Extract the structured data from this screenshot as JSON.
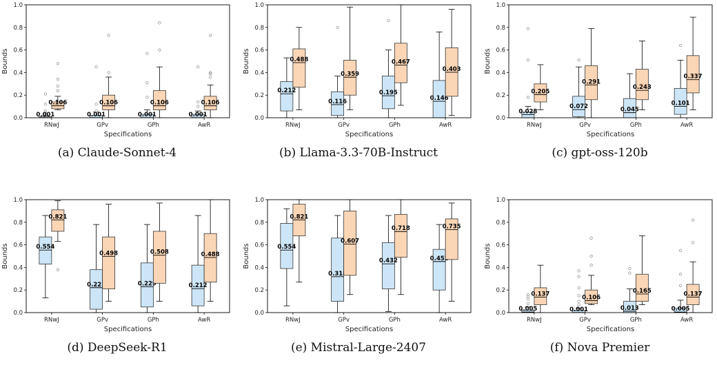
{
  "colors": {
    "lower": "#cde6f7",
    "upper": "#fbd6b6",
    "edge": "#333333",
    "outlier": "#999999"
  },
  "chart_data": [
    {
      "type": "boxplot",
      "caption": "(a) Claude-Sonnet-4",
      "xlabel": "Specifications",
      "ylabel": "Bounds",
      "ylim": [
        0,
        1.0
      ],
      "yticks": [
        "0.0",
        "0.2",
        "0.4",
        "0.6",
        "0.8",
        "1.0"
      ],
      "categories": [
        "RNwJ",
        "GPv",
        "GPh",
        "AwR"
      ],
      "groups": [
        {
          "lower": {
            "whislo": 0.0,
            "q1": 0.0,
            "med": 0.001,
            "q3": 0.01,
            "whishi": 0.02,
            "label": "0.001",
            "fliers": [
              0.04,
              0.06,
              0.12,
              0.21
            ]
          },
          "upper": {
            "whislo": 0.07,
            "q1": 0.08,
            "med": 0.106,
            "q3": 0.14,
            "whishi": 0.19,
            "label": "0.106",
            "fliers": [
              0.24,
              0.28,
              0.34,
              0.48
            ]
          }
        },
        {
          "lower": {
            "whislo": 0.0,
            "q1": 0.0,
            "med": 0.001,
            "q3": 0.02,
            "whishi": 0.05,
            "label": "0.001",
            "fliers": [
              0.06,
              0.12,
              0.45
            ]
          },
          "upper": {
            "whislo": 0.0,
            "q1": 0.07,
            "med": 0.106,
            "q3": 0.2,
            "whishi": 0.36,
            "label": "0.106",
            "fliers": [
              0.4,
              0.73
            ]
          }
        },
        {
          "lower": {
            "whislo": 0.0,
            "q1": 0.0,
            "med": 0.001,
            "q3": 0.03,
            "whishi": 0.07,
            "label": "0.001",
            "fliers": [
              0.18,
              0.31,
              0.57
            ]
          },
          "upper": {
            "whislo": 0.0,
            "q1": 0.07,
            "med": 0.106,
            "q3": 0.24,
            "whishi": 0.45,
            "label": "0.106",
            "fliers": [
              0.6,
              0.84
            ]
          }
        },
        {
          "lower": {
            "whislo": 0.0,
            "q1": 0.0,
            "med": 0.001,
            "q3": 0.03,
            "whishi": 0.06,
            "label": "0.001",
            "fliers": [
              0.1,
              0.14,
              0.45
            ]
          },
          "upper": {
            "whislo": 0.0,
            "q1": 0.07,
            "med": 0.106,
            "q3": 0.19,
            "whishi": 0.29,
            "label": "0.106",
            "fliers": [
              0.36,
              0.39,
              0.4,
              0.73
            ]
          }
        }
      ]
    },
    {
      "type": "boxplot",
      "caption": "(b) Llama-3.3-70B-Instruct",
      "xlabel": "Specifications",
      "ylabel": "Bounds",
      "ylim": [
        0,
        1.0
      ],
      "yticks": [
        "0.0",
        "0.2",
        "0.4",
        "0.6",
        "0.8",
        "1.0"
      ],
      "categories": [
        "RNwJ",
        "GPv",
        "GPh",
        "AwR"
      ],
      "groups": [
        {
          "lower": {
            "whislo": 0.0,
            "q1": 0.06,
            "med": 0.212,
            "q3": 0.32,
            "whishi": 0.53,
            "label": "0.212",
            "fliers": []
          },
          "upper": {
            "whislo": 0.07,
            "q1": 0.27,
            "med": 0.488,
            "q3": 0.61,
            "whishi": 0.8,
            "label": "0.488",
            "fliers": []
          }
        },
        {
          "lower": {
            "whislo": 0.0,
            "q1": 0.02,
            "med": 0.116,
            "q3": 0.23,
            "whishi": 0.37,
            "label": "0.116",
            "fliers": [
              0.8
            ]
          },
          "upper": {
            "whislo": 0.07,
            "q1": 0.2,
            "med": 0.359,
            "q3": 0.51,
            "whishi": 0.98,
            "label": "0.359",
            "fliers": []
          }
        },
        {
          "lower": {
            "whislo": 0.0,
            "q1": 0.08,
            "med": 0.195,
            "q3": 0.37,
            "whishi": 0.6,
            "label": "0.195",
            "fliers": [
              0.86
            ]
          },
          "upper": {
            "whislo": 0.11,
            "q1": 0.31,
            "med": 0.467,
            "q3": 0.66,
            "whishi": 1.0,
            "label": "0.467",
            "fliers": []
          }
        },
        {
          "lower": {
            "whislo": 0.0,
            "q1": 0.0,
            "med": 0.146,
            "q3": 0.33,
            "whishi": 0.76,
            "label": "0.146",
            "fliers": []
          },
          "upper": {
            "whislo": 0.02,
            "q1": 0.19,
            "med": 0.403,
            "q3": 0.62,
            "whishi": 0.96,
            "label": "0.403",
            "fliers": []
          }
        }
      ]
    },
    {
      "type": "boxplot",
      "caption": "(c) gpt-oss-120b",
      "xlabel": "Specifications",
      "ylabel": "Bounds",
      "ylim": [
        0,
        1.0
      ],
      "yticks": [
        "0.0",
        "0.2",
        "0.4",
        "0.6",
        "0.8",
        "1.0"
      ],
      "categories": [
        "RNwJ",
        "GPv",
        "GPh",
        "AwR"
      ],
      "groups": [
        {
          "lower": {
            "whislo": 0.0,
            "q1": 0.0,
            "med": 0.028,
            "q3": 0.05,
            "whishi": 0.1,
            "label": "0.028",
            "fliers": [
              0.18,
              0.51,
              0.79
            ]
          },
          "upper": {
            "whislo": 0.07,
            "q1": 0.14,
            "med": 0.205,
            "q3": 0.3,
            "whishi": 0.47,
            "label": "0.205",
            "fliers": []
          }
        },
        {
          "lower": {
            "whislo": 0.0,
            "q1": 0.01,
            "med": 0.072,
            "q3": 0.19,
            "whishi": 0.45,
            "label": "0.072",
            "fliers": [
              0.51
            ]
          },
          "upper": {
            "whislo": 0.0,
            "q1": 0.16,
            "med": 0.291,
            "q3": 0.46,
            "whishi": 0.79,
            "label": "0.291",
            "fliers": []
          }
        },
        {
          "lower": {
            "whislo": 0.0,
            "q1": 0.0,
            "med": 0.045,
            "q3": 0.17,
            "whishi": 0.39,
            "label": "0.045",
            "fliers": []
          },
          "upper": {
            "whislo": 0.07,
            "q1": 0.16,
            "med": 0.243,
            "q3": 0.43,
            "whishi": 0.68,
            "label": "0.243",
            "fliers": []
          }
        },
        {
          "lower": {
            "whislo": 0.0,
            "q1": 0.03,
            "med": 0.101,
            "q3": 0.26,
            "whishi": 0.51,
            "label": "0.101",
            "fliers": [
              0.64
            ]
          },
          "upper": {
            "whislo": 0.07,
            "q1": 0.22,
            "med": 0.337,
            "q3": 0.55,
            "whishi": 0.89,
            "label": "0.337",
            "fliers": []
          }
        }
      ]
    },
    {
      "type": "boxplot",
      "caption": "(d) DeepSeek-R1",
      "xlabel": "Specifications",
      "ylabel": "Bounds",
      "ylim": [
        0,
        1.0
      ],
      "yticks": [
        "0.0",
        "0.2",
        "0.4",
        "0.6",
        "0.8",
        "1.0"
      ],
      "categories": [
        "RNwJ",
        "GPv",
        "GPh",
        "AwR"
      ],
      "groups": [
        {
          "lower": {
            "whislo": 0.13,
            "q1": 0.43,
            "med": 0.554,
            "q3": 0.67,
            "whishi": 0.86,
            "label": "0.554",
            "fliers": []
          },
          "upper": {
            "whislo": 0.63,
            "q1": 0.72,
            "med": 0.821,
            "q3": 0.91,
            "whishi": 0.99,
            "label": "0.821",
            "fliers": [
              0.38
            ]
          }
        },
        {
          "lower": {
            "whislo": 0.0,
            "q1": 0.03,
            "med": 0.221,
            "q3": 0.38,
            "whishi": 0.78,
            "label": "0.221",
            "fliers": []
          },
          "upper": {
            "whislo": 0.1,
            "q1": 0.21,
            "med": 0.498,
            "q3": 0.67,
            "whishi": 0.96,
            "label": "0.498",
            "fliers": []
          }
        },
        {
          "lower": {
            "whislo": 0.0,
            "q1": 0.05,
            "med": 0.229,
            "q3": 0.44,
            "whishi": 0.78,
            "label": "0.229",
            "fliers": []
          },
          "upper": {
            "whislo": 0.1,
            "q1": 0.26,
            "med": 0.508,
            "q3": 0.72,
            "whishi": 0.97,
            "label": "0.508",
            "fliers": []
          }
        },
        {
          "lower": {
            "whislo": 0.0,
            "q1": 0.06,
            "med": 0.212,
            "q3": 0.42,
            "whishi": 0.86,
            "label": "0.212",
            "fliers": []
          },
          "upper": {
            "whislo": 0.1,
            "q1": 0.27,
            "med": 0.488,
            "q3": 0.7,
            "whishi": 1.0,
            "label": "0.488",
            "fliers": []
          }
        }
      ]
    },
    {
      "type": "boxplot",
      "caption": "(e) Mistral-Large-2407",
      "xlabel": "Specifications",
      "ylabel": "Bounds",
      "ylim": [
        0,
        1.0
      ],
      "yticks": [
        "0.0",
        "0.2",
        "0.4",
        "0.6",
        "0.8",
        "1.0"
      ],
      "categories": [
        "RNwJ",
        "GPv",
        "GPh",
        "AwR"
      ],
      "groups": [
        {
          "lower": {
            "whislo": 0.06,
            "q1": 0.39,
            "med": 0.554,
            "q3": 0.79,
            "whishi": 0.92,
            "label": "0.554",
            "fliers": []
          },
          "upper": {
            "whislo": 0.27,
            "q1": 0.68,
            "med": 0.821,
            "q3": 0.96,
            "whishi": 1.0,
            "label": "0.821",
            "fliers": []
          }
        },
        {
          "lower": {
            "whislo": 0.0,
            "q1": 0.1,
            "med": 0.318,
            "q3": 0.66,
            "whishi": 0.86,
            "label": "0.318",
            "fliers": []
          },
          "upper": {
            "whislo": 0.16,
            "q1": 0.33,
            "med": 0.607,
            "q3": 0.9,
            "whishi": 1.0,
            "label": "0.607",
            "fliers": []
          }
        },
        {
          "lower": {
            "whislo": 0.01,
            "q1": 0.21,
            "med": 0.432,
            "q3": 0.62,
            "whishi": 0.86,
            "label": "0.432",
            "fliers": []
          },
          "upper": {
            "whislo": 0.16,
            "q1": 0.49,
            "med": 0.718,
            "q3": 0.87,
            "whishi": 1.0,
            "label": "0.718",
            "fliers": []
          }
        },
        {
          "lower": {
            "whislo": 0.0,
            "q1": 0.2,
            "med": 0.452,
            "q3": 0.56,
            "whishi": 0.78,
            "label": "0.452",
            "fliers": []
          },
          "upper": {
            "whislo": 0.1,
            "q1": 0.47,
            "med": 0.735,
            "q3": 0.83,
            "whishi": 0.97,
            "label": "0.735",
            "fliers": []
          }
        }
      ]
    },
    {
      "type": "boxplot",
      "caption": "(f) Nova Premier",
      "xlabel": "Specifications",
      "ylabel": "Bounds",
      "ylim": [
        0,
        1.0
      ],
      "yticks": [
        "0.0",
        "0.2",
        "0.4",
        "0.6",
        "0.8",
        "1.0"
      ],
      "categories": [
        "RNwJ",
        "GPv",
        "GPh",
        "AwR"
      ],
      "groups": [
        {
          "lower": {
            "whislo": 0.0,
            "q1": 0.0,
            "med": 0.005,
            "q3": 0.02,
            "whishi": 0.05,
            "label": "0.005",
            "fliers": [
              0.08,
              0.12,
              0.14,
              0.16
            ]
          },
          "upper": {
            "whislo": 0.0,
            "q1": 0.07,
            "med": 0.137,
            "q3": 0.22,
            "whishi": 0.42,
            "label": "0.137",
            "fliers": []
          }
        },
        {
          "lower": {
            "whislo": 0.0,
            "q1": 0.0,
            "med": 0.001,
            "q3": 0.02,
            "whishi": 0.04,
            "label": "0.001",
            "fliers": [
              0.07,
              0.1,
              0.15,
              0.22,
              0.32,
              0.37
            ]
          },
          "upper": {
            "whislo": 0.07,
            "q1": 0.08,
            "med": 0.106,
            "q3": 0.2,
            "whishi": 0.33,
            "label": "0.106",
            "fliers": [
              0.42,
              0.5,
              0.66
            ]
          }
        },
        {
          "lower": {
            "whislo": 0.0,
            "q1": 0.0,
            "med": 0.013,
            "q3": 0.1,
            "whishi": 0.21,
            "label": "0.013",
            "fliers": [
              0.35,
              0.39
            ]
          },
          "upper": {
            "whislo": 0.07,
            "q1": 0.1,
            "med": 0.165,
            "q3": 0.34,
            "whishi": 0.68,
            "label": "0.165",
            "fliers": []
          }
        },
        {
          "lower": {
            "whislo": 0.0,
            "q1": 0.0,
            "med": 0.005,
            "q3": 0.04,
            "whishi": 0.11,
            "label": "0.005",
            "fliers": [
              0.24,
              0.34,
              0.55
            ]
          },
          "upper": {
            "whislo": 0.0,
            "q1": 0.07,
            "med": 0.137,
            "q3": 0.25,
            "whishi": 0.45,
            "label": "0.137",
            "fliers": [
              0.62,
              0.82
            ]
          }
        }
      ]
    }
  ]
}
